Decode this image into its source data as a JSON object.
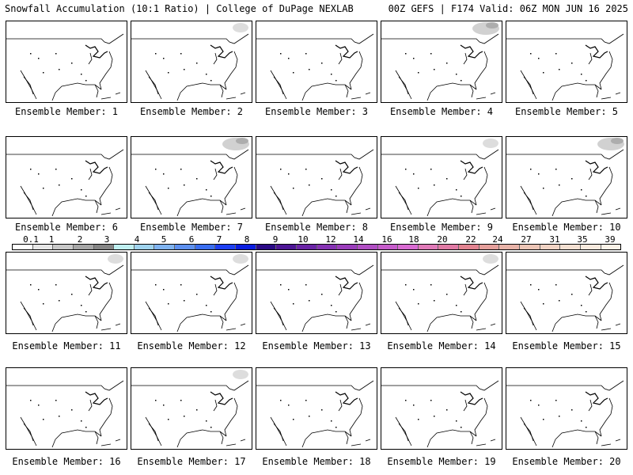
{
  "header": {
    "title_left": "Snowfall Accumulation (10:1 Ratio) | College of DuPage NEXLAB",
    "title_right": "00Z GEFS | F174 Valid: 06Z MON JUN 16 2025"
  },
  "members": [
    {
      "label": "Ensemble Member: 1",
      "snow": "none"
    },
    {
      "label": "Ensemble Member: 2",
      "snow": "light"
    },
    {
      "label": "Ensemble Member: 3",
      "snow": "none"
    },
    {
      "label": "Ensemble Member: 4",
      "snow": "moderate"
    },
    {
      "label": "Ensemble Member: 5",
      "snow": "none"
    },
    {
      "label": "Ensemble Member: 6",
      "snow": "none"
    },
    {
      "label": "Ensemble Member: 7",
      "snow": "moderate"
    },
    {
      "label": "Ensemble Member: 8",
      "snow": "none"
    },
    {
      "label": "Ensemble Member: 9",
      "snow": "light"
    },
    {
      "label": "Ensemble Member: 10",
      "snow": "moderate"
    },
    {
      "label": "Ensemble Member: 11",
      "snow": "light"
    },
    {
      "label": "Ensemble Member: 12",
      "snow": "light"
    },
    {
      "label": "Ensemble Member: 13",
      "snow": "none"
    },
    {
      "label": "Ensemble Member: 14",
      "snow": "light"
    },
    {
      "label": "Ensemble Member: 15",
      "snow": "none"
    },
    {
      "label": "Ensemble Member: 16",
      "snow": "none"
    },
    {
      "label": "Ensemble Member: 17",
      "snow": "light"
    },
    {
      "label": "Ensemble Member: 18",
      "snow": "none"
    },
    {
      "label": "Ensemble Member: 19",
      "snow": "none"
    },
    {
      "label": "Ensemble Member: 20",
      "snow": "none"
    }
  ],
  "legend": {
    "labels": [
      "0.1",
      "1",
      "2",
      "3",
      "4",
      "5",
      "6",
      "7",
      "8",
      "9",
      "10",
      "12",
      "14",
      "16",
      "18",
      "20",
      "22",
      "24",
      "27",
      "31",
      "35",
      "39"
    ],
    "colors": [
      "#ffffff",
      "#e6e6e6",
      "#c8c8c8",
      "#a6a6a6",
      "#858585",
      "#bfeff0",
      "#9fd3ee",
      "#7fb3f0",
      "#5d90ef",
      "#3a6ef0",
      "#1d3ff2",
      "#0a1de0",
      "#2b0a86",
      "#4d1696",
      "#6a24a6",
      "#8532b3",
      "#9a3dbb",
      "#b04ec3",
      "#c65ccb",
      "#d96bd2",
      "#e07ab8",
      "#e07aa4",
      "#e28390",
      "#e59f9b",
      "#e8b3a8",
      "#ecc5b6",
      "#f0d3c4",
      "#f4e0d2",
      "#f8eade",
      "#fbf2e8"
    ]
  }
}
